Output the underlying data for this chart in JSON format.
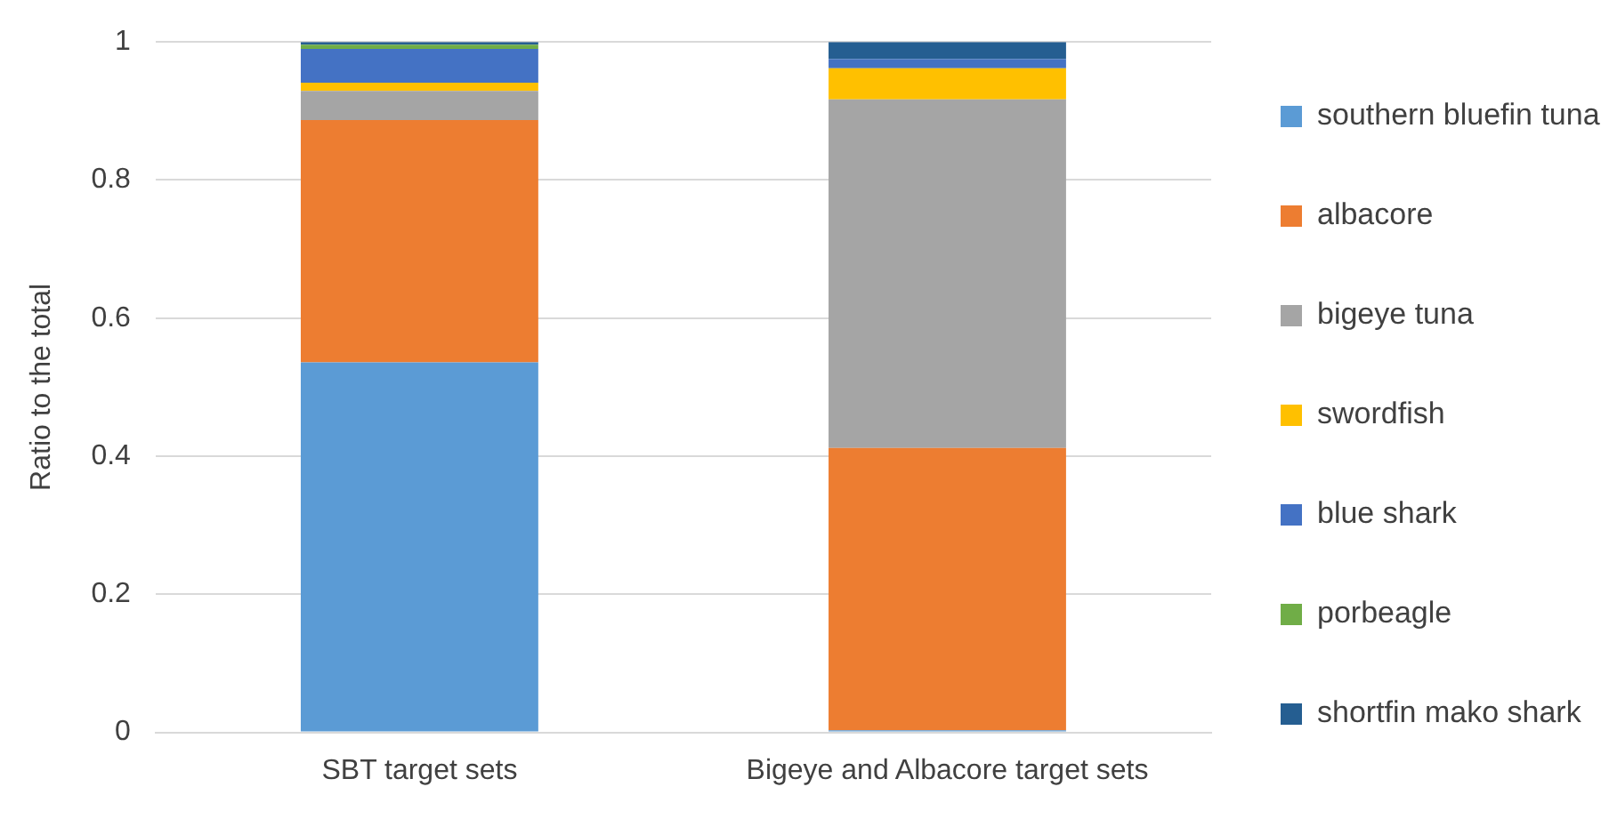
{
  "chart_data": {
    "type": "bar",
    "stacked": true,
    "ylabel": "Ratio to the total",
    "categories": [
      "SBT target sets",
      "Bigeye and Albacore target sets"
    ],
    "series": [
      {
        "name": "southern bluefin tuna",
        "color": "#5b9bd5",
        "values": [
          0.536,
          0.003
        ]
      },
      {
        "name": "albacore",
        "color": "#ed7d31",
        "values": [
          0.351,
          0.409
        ]
      },
      {
        "name": "bigeye tuna",
        "color": "#a5a5a5",
        "values": [
          0.042,
          0.505
        ]
      },
      {
        "name": "swordfish",
        "color": "#ffc000",
        "values": [
          0.012,
          0.045
        ]
      },
      {
        "name": "blue shark",
        "color": "#4472c4",
        "values": [
          0.049,
          0.013
        ]
      },
      {
        "name": "porbeagle",
        "color": "#70ad47",
        "values": [
          0.006,
          0
        ]
      },
      {
        "name": "shortfin mako shark",
        "color": "#255e91",
        "values": [
          0.004,
          0.025
        ]
      }
    ],
    "ylim": [
      0,
      1
    ],
    "yticks": [
      0,
      0.2,
      0.4,
      0.6,
      0.8,
      1
    ],
    "grid": "y",
    "legend": "right"
  }
}
